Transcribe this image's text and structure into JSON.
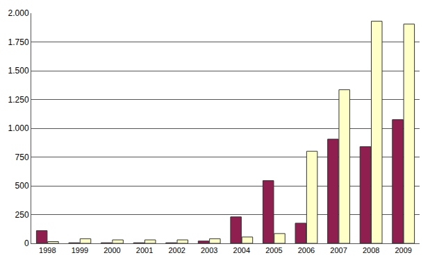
{
  "chart_data": {
    "type": "bar",
    "categories": [
      "1998",
      "1999",
      "2000",
      "2001",
      "2002",
      "2003",
      "2004",
      "2005",
      "2006",
      "2007",
      "2008",
      "2009"
    ],
    "series": [
      {
        "color": "#8e1f4f",
        "values": [
          110,
          5,
          5,
          5,
          5,
          20,
          230,
          545,
          175,
          905,
          840,
          1075
        ]
      },
      {
        "color": "#ffffc8",
        "values": [
          15,
          40,
          30,
          30,
          30,
          40,
          55,
          85,
          800,
          1335,
          1930,
          1905
        ]
      }
    ],
    "ylim": [
      0,
      2000
    ],
    "yticks": [
      0,
      250,
      500,
      750,
      {
        "value": 1000,
        "label": "1.000"
      },
      {
        "value": 1250,
        "label": "1.250"
      },
      {
        "value": 1500,
        "label": "1.500"
      },
      {
        "value": 1750,
        "label": "1.750"
      },
      {
        "value": 2000,
        "label": "2.000"
      }
    ],
    "grid": true
  }
}
